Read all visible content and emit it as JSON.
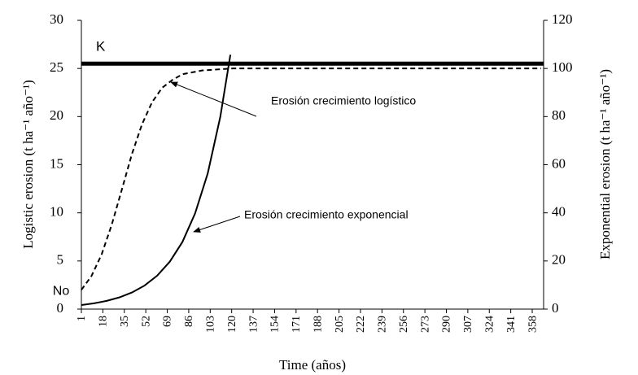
{
  "chart_data": {
    "type": "line",
    "xlabel": "Time (años)",
    "ylabel": "Logistic erosion (t ha⁻¹ año⁻¹)",
    "y2label": "Exponential erosion (t ha⁻¹ año⁻¹)",
    "xlim": [
      1,
      367
    ],
    "xticks": [
      1,
      18,
      35,
      52,
      69,
      86,
      103,
      120,
      137,
      154,
      171,
      188,
      205,
      222,
      239,
      256,
      273,
      290,
      307,
      324,
      341,
      358
    ],
    "ylim": [
      0,
      30
    ],
    "yticks": [
      0,
      5,
      10,
      15,
      20,
      25,
      30
    ],
    "y2lim": [
      0,
      120
    ],
    "y2ticks": [
      0,
      20,
      40,
      60,
      80,
      100,
      120
    ],
    "grid": false,
    "series": [
      {
        "name": "Erosión crecimiento logístico",
        "color": "#000000",
        "dash": true,
        "x": [
          1,
          9,
          17,
          25,
          33,
          41,
          49,
          57,
          65,
          73,
          81,
          97,
          121,
          161,
          201,
          241,
          281,
          321,
          365
        ],
        "values": [
          2.0,
          3.44,
          5.67,
          8.75,
          12.4,
          16.1,
          19.2,
          21.5,
          23.0,
          23.8,
          24.4,
          24.8,
          25.0,
          25.0,
          25.0,
          25.0,
          25.0,
          25.0,
          25.0
        ]
      },
      {
        "name": "Erosión crecimiento exponencial",
        "color": "#000000",
        "dash": false,
        "axis": "y2",
        "x": [
          1,
          11,
          21,
          31,
          41,
          51,
          61,
          71,
          81,
          91,
          101,
          111,
          119
        ],
        "values": [
          1.7,
          2.41,
          3.42,
          4.86,
          6.89,
          9.78,
          13.9,
          19.7,
          27.9,
          39.7,
          56.3,
          79.9,
          105.7
        ]
      }
    ],
    "reference_line": {
      "label": "K",
      "value": 25.5
    },
    "start_label": "No"
  }
}
